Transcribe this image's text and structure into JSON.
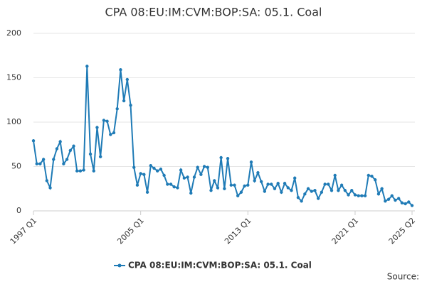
{
  "chart_data": {
    "type": "line",
    "title": "CPA 08:EU:IM:CVM:BOP:SA: 05.1. Coal",
    "categories": [
      "1997 Q1",
      "1997 Q2",
      "1997 Q3",
      "1997 Q4",
      "1998 Q1",
      "1998 Q2",
      "1998 Q3",
      "1998 Q4",
      "1999 Q1",
      "1999 Q2",
      "1999 Q3",
      "1999 Q4",
      "2000 Q1",
      "2000 Q2",
      "2000 Q3",
      "2000 Q4",
      "2001 Q1",
      "2001 Q2",
      "2001 Q3",
      "2001 Q4",
      "2002 Q1",
      "2002 Q2",
      "2002 Q3",
      "2002 Q4",
      "2003 Q1",
      "2003 Q2",
      "2003 Q3",
      "2003 Q4",
      "2004 Q1",
      "2004 Q2",
      "2004 Q3",
      "2004 Q4",
      "2005 Q1",
      "2005 Q2",
      "2005 Q3",
      "2005 Q4",
      "2006 Q1",
      "2006 Q2",
      "2006 Q3",
      "2006 Q4",
      "2007 Q1",
      "2007 Q2",
      "2007 Q3",
      "2007 Q4",
      "2008 Q1",
      "2008 Q2",
      "2008 Q3",
      "2008 Q4",
      "2009 Q1",
      "2009 Q2",
      "2009 Q3",
      "2009 Q4",
      "2010 Q1",
      "2010 Q2",
      "2010 Q3",
      "2010 Q4",
      "2011 Q1",
      "2011 Q2",
      "2011 Q3",
      "2011 Q4",
      "2012 Q1",
      "2012 Q2",
      "2012 Q3",
      "2012 Q4",
      "2013 Q1",
      "2013 Q2",
      "2013 Q3",
      "2013 Q4",
      "2014 Q1",
      "2014 Q2",
      "2014 Q3",
      "2014 Q4",
      "2015 Q1",
      "2015 Q2",
      "2015 Q3",
      "2015 Q4",
      "2016 Q1",
      "2016 Q2",
      "2016 Q3",
      "2016 Q4",
      "2017 Q1",
      "2017 Q2",
      "2017 Q3",
      "2017 Q4",
      "2018 Q1",
      "2018 Q2",
      "2018 Q3",
      "2018 Q4",
      "2019 Q1",
      "2019 Q2",
      "2019 Q3",
      "2019 Q4",
      "2020 Q1",
      "2020 Q2",
      "2020 Q3",
      "2020 Q4",
      "2021 Q1",
      "2021 Q2",
      "2021 Q3",
      "2021 Q4",
      "2022 Q1",
      "2022 Q2",
      "2022 Q3",
      "2022 Q4",
      "2023 Q1",
      "2023 Q2",
      "2023 Q3",
      "2023 Q4",
      "2024 Q1",
      "2024 Q2",
      "2024 Q3",
      "2024 Q4",
      "2025 Q1",
      "2025 Q2"
    ],
    "series": [
      {
        "name": "CPA 08:EU:IM:CVM:BOP:SA: 05.1. Coal",
        "color": "#1f7bb6",
        "values": [
          79,
          53,
          53,
          58,
          34,
          26,
          58,
          70,
          78,
          53,
          58,
          68,
          73,
          45,
          45,
          46,
          163,
          64,
          45,
          94,
          61,
          102,
          101,
          86,
          88,
          115,
          159,
          124,
          148,
          119,
          49,
          29,
          42,
          41,
          21,
          51,
          48,
          45,
          47,
          40,
          30,
          30,
          27,
          26,
          46,
          37,
          38,
          20,
          38,
          49,
          41,
          50,
          49,
          23,
          34,
          26,
          60,
          25,
          59,
          29,
          29,
          17,
          21,
          28,
          29,
          55,
          34,
          43,
          33,
          22,
          30,
          30,
          25,
          31,
          21,
          31,
          26,
          23,
          37,
          15,
          11,
          19,
          25,
          22,
          23,
          14,
          21,
          30,
          30,
          23,
          40,
          23,
          29,
          23,
          18,
          23,
          18,
          17,
          17,
          17,
          40,
          39,
          35,
          19,
          25,
          11,
          13,
          17,
          12,
          14,
          9,
          8,
          10,
          6
        ]
      }
    ],
    "xticks": [
      "1997 Q1",
      "2005 Q1",
      "2013 Q1",
      "2021 Q1",
      "2025 Q2"
    ],
    "ylim": [
      0,
      200
    ],
    "yticks": [
      0,
      50,
      100,
      150,
      200
    ],
    "grid": true,
    "source": "Source:"
  }
}
